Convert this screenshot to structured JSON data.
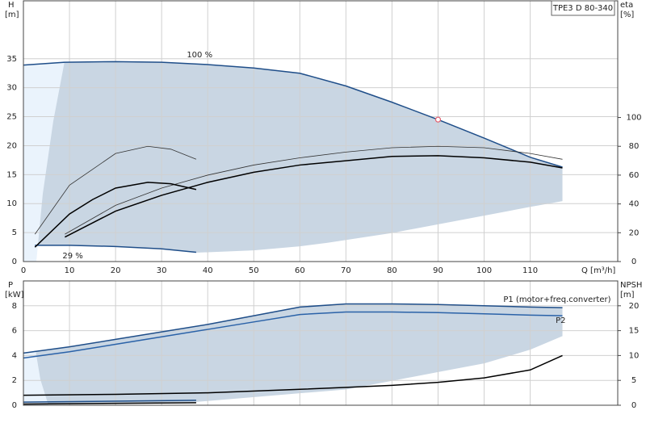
{
  "label_box": "TPE3 D 80-340",
  "chart_data": [
    {
      "type": "line",
      "y_label": "H",
      "y_unit": "[m]",
      "y2_label": "eta",
      "y2_unit": "[%]",
      "x_label": "Q [m³/h]",
      "xlim": [
        0,
        129
      ],
      "ylim": [
        0,
        45
      ],
      "y2lim": [
        0,
        181
      ],
      "xticks": [
        0,
        10,
        20,
        30,
        40,
        50,
        60,
        70,
        80,
        90,
        100,
        110
      ],
      "yticks": [
        0,
        5,
        10,
        15,
        20,
        25,
        30,
        35
      ],
      "y2ticks": [
        0,
        20,
        40,
        60,
        80,
        100
      ],
      "grid": true,
      "operating_point": [
        90,
        24.5
      ],
      "region": {
        "x": [
          37.5,
          50,
          60,
          66,
          80,
          90,
          100,
          110,
          117
        ],
        "values": [
          1.6,
          2,
          2.7,
          3.3,
          5,
          6.5,
          8,
          9.5,
          10.5
        ],
        "color": "#c9d6e3"
      },
      "series": [
        {
          "name": "100 %",
          "color": "#1f4e89",
          "x": [
            0,
            9,
            20,
            30,
            40,
            50,
            60,
            70,
            80,
            90,
            100,
            110,
            117
          ],
          "values": [
            33.9,
            34.4,
            34.5,
            34.4,
            34,
            33.4,
            32.5,
            30.3,
            27.5,
            24.5,
            21.3,
            18,
            16.3
          ]
        },
        {
          "name": "29 %",
          "color": "#1f4e89",
          "x": [
            2.5,
            10,
            20,
            30,
            37.5
          ],
          "values": [
            2.8,
            2.8,
            2.6,
            2.2,
            1.6
          ]
        },
        {
          "color": "#333333",
          "axis": "y2",
          "x": [
            9,
            20,
            30,
            40,
            50,
            60,
            70,
            80,
            90,
            100,
            110,
            117
          ],
          "values": [
            19,
            39,
            51,
            60,
            67,
            72,
            76,
            79,
            80,
            79,
            75,
            71
          ]
        },
        {
          "color": "#000000",
          "axis": "y2",
          "x": [
            9,
            20,
            30,
            40,
            50,
            60,
            70,
            80,
            90,
            100,
            110,
            117
          ],
          "values": [
            17,
            35,
            46,
            55,
            62,
            67,
            70,
            73,
            73.5,
            72,
            69,
            65
          ]
        },
        {
          "color": "#333333",
          "axis": "y2",
          "x": [
            2.5,
            10,
            15,
            20,
            27,
            32,
            37.5
          ],
          "values": [
            19,
            53,
            64,
            75,
            80,
            78,
            71
          ]
        },
        {
          "color": "#000000",
          "axis": "y2",
          "x": [
            2.5,
            10,
            15,
            20,
            27,
            32,
            37.5
          ],
          "values": [
            10,
            33,
            43,
            51,
            55,
            54,
            50
          ]
        }
      ]
    },
    {
      "type": "line",
      "y_label": "P",
      "y_unit": "[kW]",
      "y2_label": "NPSH",
      "y2_unit": "[m]",
      "xlim": [
        0,
        129
      ],
      "ylim": [
        0,
        10
      ],
      "y2lim": [
        0,
        25
      ],
      "xticks": [
        0,
        10,
        20,
        30,
        40,
        50,
        60,
        70,
        80,
        90,
        100,
        110
      ],
      "yticks": [
        0,
        2,
        4,
        6,
        8
      ],
      "y2ticks": [
        0,
        5,
        10,
        15,
        20
      ],
      "grid": true,
      "region": {
        "x": [
          0,
          37.5,
          60,
          70,
          80,
          90,
          100,
          110,
          117
        ],
        "values": [
          0.1,
          0.3,
          1,
          1.3,
          2,
          2.7,
          3.4,
          4.5,
          5.6
        ],
        "color": "#c9d6e3"
      },
      "series": [
        {
          "name": "P1 (motor+freq.converter)",
          "color": "#1f4e89",
          "x": [
            0,
            10,
            20,
            30,
            40,
            50,
            60,
            70,
            80,
            90,
            100,
            110,
            117
          ],
          "values": [
            4.2,
            4.7,
            5.3,
            5.9,
            6.5,
            7.2,
            7.9,
            8.15,
            8.15,
            8.1,
            8,
            7.9,
            7.85
          ]
        },
        {
          "name": "P2",
          "color": "#2a62a8",
          "x": [
            0,
            10,
            20,
            30,
            40,
            50,
            60,
            70,
            80,
            90,
            100,
            110,
            117
          ],
          "values": [
            3.8,
            4.3,
            4.9,
            5.5,
            6.1,
            6.7,
            7.3,
            7.5,
            7.5,
            7.45,
            7.35,
            7.25,
            7.2
          ]
        },
        {
          "color": "#000000",
          "axis": "y2",
          "x": [
            0,
            20,
            40,
            60,
            70,
            80,
            90,
            100,
            110,
            117
          ],
          "values": [
            2,
            2.2,
            2.5,
            3.2,
            3.6,
            4,
            4.6,
            5.5,
            7.1,
            10
          ]
        },
        {
          "color": "#1f4e89",
          "x": [
            0,
            37.5
          ],
          "values": [
            0.25,
            0.4
          ]
        },
        {
          "color": "#000000",
          "x": [
            0,
            37.5
          ],
          "values": [
            0.1,
            0.2
          ]
        }
      ]
    }
  ]
}
